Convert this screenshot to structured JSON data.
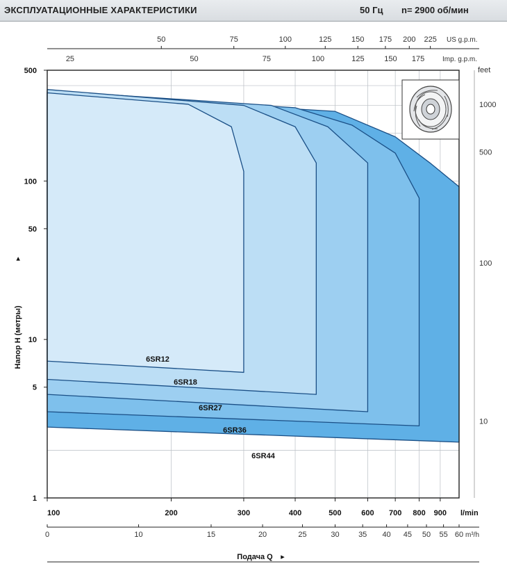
{
  "header": {
    "title": "ЭКСПЛУАТАЦИОННЫЕ ХАРАКТЕРИСТИКИ",
    "frequency": "50 Гц",
    "speed": "n= 2900  об/мин"
  },
  "chart_data": {
    "type": "area",
    "title": "ЭКСПЛУАТАЦИОННЫЕ ХАРАКТЕРИСТИКИ",
    "subtitle": "50 Гц  n= 2900  об/мин",
    "xlabel": "Подача Q",
    "ylabel": "Напор H (метры)",
    "x_scale": "log",
    "y_scale": "log",
    "x_units": "l/min",
    "y_units": "m",
    "xlim": [
      100,
      1000
    ],
    "ylim": [
      1,
      500
    ],
    "grid": true,
    "x_ticks_lmin": [
      100,
      200,
      300,
      400,
      500,
      600,
      700,
      800,
      900
    ],
    "x_tick_labels_lmin": [
      "100",
      "200",
      "300",
      "400",
      "500",
      "600",
      "700",
      "800",
      "900"
    ],
    "x_unit_label_lmin": "l/min",
    "x_ticks_m3h": [
      0,
      10,
      15,
      20,
      25,
      30,
      35,
      40,
      45,
      50,
      55,
      60
    ],
    "x_unit_label_m3h": "m³/h",
    "x_ticks_us_gpm": [
      50,
      75,
      100,
      125,
      150,
      175,
      200,
      225
    ],
    "x_unit_label_us_gpm": "US g.p.m.",
    "x_ticks_imp_gpm": [
      25,
      50,
      75,
      100,
      125,
      150,
      175
    ],
    "x_unit_label_imp_gpm": "Imp. g.p.m.",
    "y_ticks_m": [
      1,
      5,
      10,
      50,
      100,
      500
    ],
    "y_ticks_feet": [
      10,
      100,
      500,
      1000
    ],
    "y_unit_label_feet": "feet",
    "series": [
      {
        "name": "6SR44",
        "color": "#5fb0e6",
        "max_head": [
          [
            100,
            2.8
          ],
          [
            1000,
            2.25
          ]
        ],
        "upper_head": [
          [
            100,
            355
          ],
          [
            500,
            275
          ],
          [
            700,
            190
          ],
          [
            850,
            130
          ],
          [
            1000,
            92
          ]
        ],
        "q_min": 100,
        "q_max": 1000
      },
      {
        "name": "6SR36",
        "color": "#7ec0ec",
        "max_head": [
          [
            100,
            3.5
          ],
          [
            800,
            2.85
          ]
        ],
        "upper_head": [
          [
            100,
            363
          ],
          [
            400,
            290
          ],
          [
            550,
            225
          ],
          [
            700,
            150
          ],
          [
            800,
            78
          ]
        ],
        "q_min": 100,
        "q_max": 800
      },
      {
        "name": "6SR27",
        "color": "#9dcff1",
        "max_head": [
          [
            100,
            4.5
          ],
          [
            600,
            3.5
          ]
        ],
        "upper_head": [
          [
            100,
            372
          ],
          [
            350,
            300
          ],
          [
            480,
            220
          ],
          [
            600,
            130
          ]
        ],
        "q_min": 100,
        "q_max": 600
      },
      {
        "name": "6SR18",
        "color": "#bcdef5",
        "max_head": [
          [
            100,
            5.6
          ],
          [
            450,
            4.5
          ]
        ],
        "upper_head": [
          [
            100,
            378
          ],
          [
            300,
            300
          ],
          [
            400,
            220
          ],
          [
            450,
            130
          ]
        ],
        "q_min": 100,
        "q_max": 450
      },
      {
        "name": "6SR12",
        "color": "#d5eaf9",
        "max_head": [
          [
            100,
            7.3
          ],
          [
            300,
            6.2
          ]
        ],
        "upper_head": [
          [
            100,
            360
          ],
          [
            220,
            305
          ],
          [
            280,
            220
          ],
          [
            300,
            115
          ]
        ],
        "q_min": 100,
        "q_max": 300
      }
    ]
  },
  "impeller_icon": "impeller-icon"
}
